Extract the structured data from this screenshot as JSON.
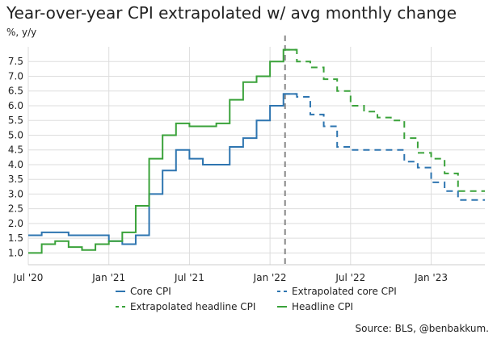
{
  "title": "Year-over-year CPI extrapolated w/ avg monthly change",
  "subtitle": "%, y/y",
  "source": "Source: BLS, @benbakkum.",
  "colors": {
    "core": "#2e75b0",
    "headline": "#3aa23a",
    "divider": "#888888",
    "grid": "#dddddd"
  },
  "chart_data": {
    "type": "line",
    "title": "Year-over-year CPI extrapolated w/ avg monthly change",
    "ylabel": "%, y/y",
    "xlim": [
      "2020-07",
      "2023-05"
    ],
    "ylim": [
      0.6,
      8.0
    ],
    "grid": true,
    "legend_position": "bottom",
    "x_ticks": [
      "Jul '20",
      "Jan '21",
      "Jul '21",
      "Jan '22",
      "Jul '22",
      "Jan '23"
    ],
    "y_ticks": [
      "1.0",
      "1.5",
      "2.0",
      "2.5",
      "3.0",
      "3.5",
      "4.0",
      "4.5",
      "5.0",
      "5.5",
      "6.0",
      "6.5",
      "7.0",
      "7.5"
    ],
    "forecast_start": "2022-02",
    "series": [
      {
        "name": "Core CPI",
        "color": "#2e75b0",
        "style": "step",
        "x": [
          "2020-07",
          "2020-08",
          "2020-09",
          "2020-10",
          "2020-11",
          "2020-12",
          "2021-01",
          "2021-02",
          "2021-03",
          "2021-04",
          "2021-05",
          "2021-06",
          "2021-07",
          "2021-08",
          "2021-09",
          "2021-10",
          "2021-11",
          "2021-12",
          "2022-01",
          "2022-02"
        ],
        "values": [
          1.6,
          1.7,
          1.7,
          1.6,
          1.6,
          1.6,
          1.4,
          1.3,
          1.6,
          3.0,
          3.8,
          4.5,
          4.2,
          4.0,
          4.0,
          4.6,
          4.9,
          5.5,
          6.0,
          6.4
        ]
      },
      {
        "name": "Headline CPI",
        "color": "#3aa23a",
        "style": "step",
        "x": [
          "2020-07",
          "2020-08",
          "2020-09",
          "2020-10",
          "2020-11",
          "2020-12",
          "2021-01",
          "2021-02",
          "2021-03",
          "2021-04",
          "2021-05",
          "2021-06",
          "2021-07",
          "2021-08",
          "2021-09",
          "2021-10",
          "2021-11",
          "2021-12",
          "2022-01",
          "2022-02"
        ],
        "values": [
          1.0,
          1.3,
          1.4,
          1.2,
          1.1,
          1.3,
          1.4,
          1.7,
          2.6,
          4.2,
          5.0,
          5.4,
          5.3,
          5.3,
          5.4,
          6.2,
          6.8,
          7.0,
          7.5,
          7.9
        ]
      },
      {
        "name": "Extrapolated core CPI",
        "color": "#2e75b0",
        "style": "step-dashed",
        "x": [
          "2022-02",
          "2022-03",
          "2022-04",
          "2022-05",
          "2022-06",
          "2022-07",
          "2022-08",
          "2022-09",
          "2022-10",
          "2022-11",
          "2022-12",
          "2023-01",
          "2023-02",
          "2023-03",
          "2023-04",
          "2023-05"
        ],
        "values": [
          6.4,
          6.3,
          5.7,
          5.3,
          4.6,
          4.5,
          4.5,
          4.5,
          4.5,
          4.1,
          3.9,
          3.4,
          3.1,
          2.8,
          2.8,
          2.8
        ]
      },
      {
        "name": "Extrapolated headline CPI",
        "color": "#3aa23a",
        "style": "step-dashed",
        "x": [
          "2022-02",
          "2022-03",
          "2022-04",
          "2022-05",
          "2022-06",
          "2022-07",
          "2022-08",
          "2022-09",
          "2022-10",
          "2022-11",
          "2022-12",
          "2023-01",
          "2023-02",
          "2023-03",
          "2023-04",
          "2023-05"
        ],
        "values": [
          7.9,
          7.5,
          7.3,
          6.9,
          6.5,
          6.0,
          5.8,
          5.6,
          5.5,
          4.9,
          4.4,
          4.2,
          3.7,
          3.1,
          3.1,
          3.1
        ]
      }
    ],
    "legend": [
      {
        "label": "Core CPI",
        "series": "Core CPI",
        "dashed": false
      },
      {
        "label": "Extrapolated core CPI",
        "series": "Extrapolated core CPI",
        "dashed": true
      },
      {
        "label": "Extrapolated headline CPI",
        "series": "Extrapolated headline CPI",
        "dashed": true
      },
      {
        "label": "Headline CPI",
        "series": "Headline CPI",
        "dashed": false
      }
    ]
  }
}
